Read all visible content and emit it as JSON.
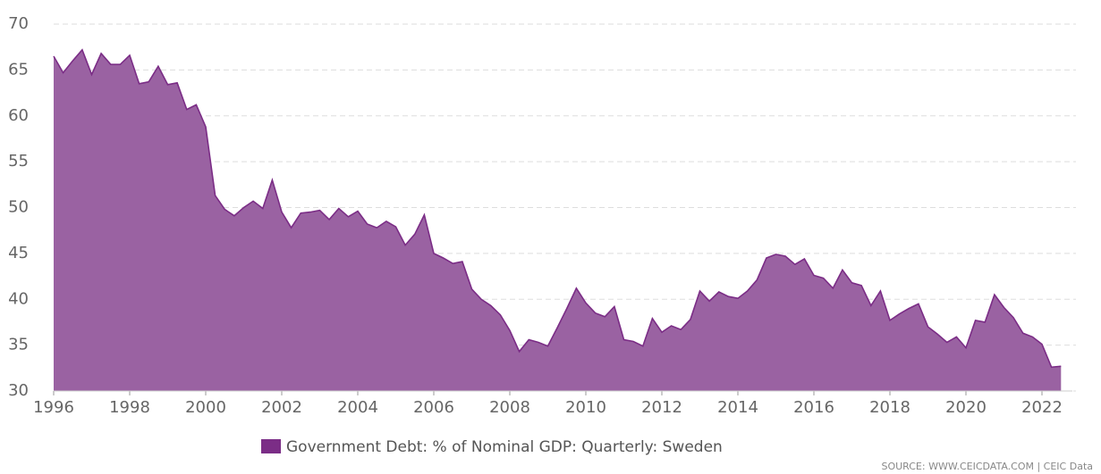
{
  "chart_data": {
    "type": "area",
    "legend": "bottom",
    "source": "SOURCE: WWW.CEICDATA.COM | CEIC Data",
    "x": [
      1996,
      1996.25,
      1996.5,
      1996.75,
      1997,
      1997.25,
      1997.5,
      1997.75,
      1998,
      1998.25,
      1998.5,
      1998.75,
      1999,
      1999.25,
      1999.5,
      1999.75,
      2000,
      2000.25,
      2000.5,
      2000.75,
      2001,
      2001.25,
      2001.5,
      2001.75,
      2002,
      2002.25,
      2002.5,
      2002.75,
      2003,
      2003.25,
      2003.5,
      2003.75,
      2004,
      2004.25,
      2004.5,
      2004.75,
      2005,
      2005.25,
      2005.5,
      2005.75,
      2006,
      2006.25,
      2006.5,
      2006.75,
      2007,
      2007.25,
      2007.5,
      2007.75,
      2008,
      2008.25,
      2008.5,
      2008.75,
      2009,
      2009.25,
      2009.5,
      2009.75,
      2010,
      2010.25,
      2010.5,
      2010.75,
      2011,
      2011.25,
      2011.5,
      2011.75,
      2012,
      2012.25,
      2012.5,
      2012.75,
      2013,
      2013.25,
      2013.5,
      2013.75,
      2014,
      2014.25,
      2014.5,
      2014.75,
      2015,
      2015.25,
      2015.5,
      2015.75,
      2016,
      2016.25,
      2016.5,
      2016.75,
      2017,
      2017.25,
      2017.5,
      2017.75,
      2018,
      2018.25,
      2018.5,
      2018.75,
      2019,
      2019.25,
      2019.5,
      2019.75,
      2020,
      2020.25,
      2020.5,
      2020.75,
      2021,
      2021.25,
      2021.5,
      2021.75,
      2022,
      2022.25,
      2022.5
    ],
    "series": [
      {
        "name": "Government Debt: % of Nominal GDP: Quarterly: Sweden",
        "color": "#7b2d86",
        "fill": "#9a62a2",
        "values": [
          66.5,
          64.7,
          66,
          67.2,
          64.5,
          66.8,
          65.6,
          65.6,
          66.6,
          63.5,
          63.7,
          65.4,
          63.4,
          63.6,
          60.7,
          61.2,
          58.8,
          51.3,
          49.8,
          49.1,
          50,
          50.7,
          49.9,
          53,
          49.5,
          47.8,
          49.4,
          49.5,
          49.7,
          48.7,
          49.9,
          49,
          49.6,
          48.2,
          47.8,
          48.5,
          47.9,
          45.9,
          47.1,
          49.2,
          45,
          44.5,
          43.9,
          44.1,
          41.1,
          40,
          39.3,
          38.3,
          36.6,
          34.3,
          35.6,
          35.3,
          34.9,
          36.9,
          39,
          41.2,
          39.6,
          38.5,
          38.1,
          39.2,
          35.6,
          35.4,
          34.9,
          37.9,
          36.4,
          37.1,
          36.7,
          37.8,
          40.9,
          39.8,
          40.8,
          40.3,
          40.1,
          40.9,
          42.1,
          44.5,
          44.9,
          44.7,
          43.8,
          44.4,
          42.6,
          42.3,
          41.2,
          43.2,
          41.8,
          41.5,
          39.3,
          40.9,
          37.7,
          38.4,
          39,
          39.5,
          37,
          36.2,
          35.3,
          35.9,
          34.7,
          37.7,
          37.5,
          40.5,
          39.1,
          38,
          36.3,
          35.9,
          35.1,
          32.6,
          32.7
        ]
      }
    ],
    "xlim": [
      1996,
      2022.8
    ],
    "xticks": [
      1996,
      1998,
      2000,
      2002,
      2004,
      2006,
      2008,
      2010,
      2012,
      2014,
      2016,
      2018,
      2020,
      2022
    ],
    "ylim": [
      30,
      70
    ],
    "yticks": [
      30,
      35,
      40,
      45,
      50,
      55,
      60,
      65,
      70
    ],
    "grid": true
  }
}
